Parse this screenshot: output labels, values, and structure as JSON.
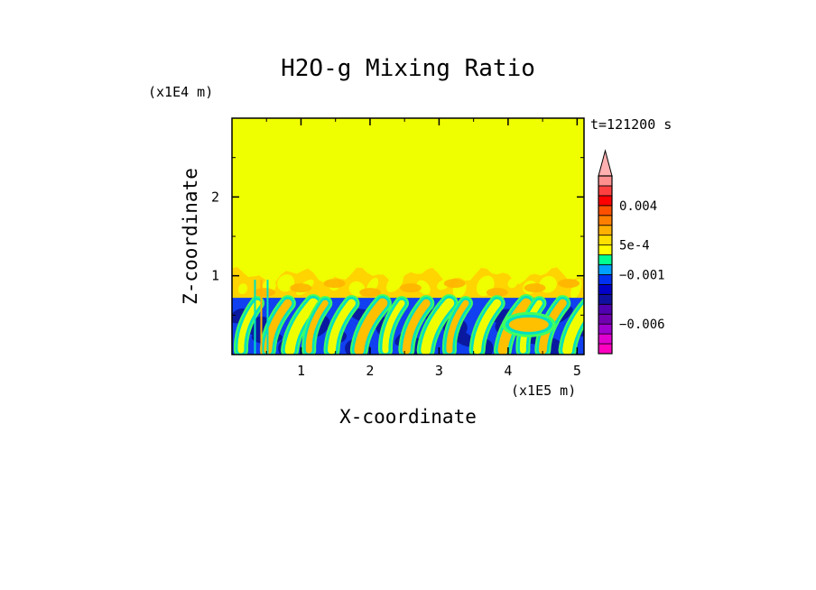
{
  "chart_data": {
    "type": "heatmap",
    "title": "H2O-g Mixing Ratio",
    "xlabel": "X-coordinate",
    "ylabel": "Z-coordinate",
    "x_unit": "(x1E5 m)",
    "y_unit": "(x1E4 m)",
    "time_label": "t=121200 s",
    "x_ticks": [
      "1",
      "2",
      "3",
      "4",
      "5"
    ],
    "y_ticks": [
      "1",
      "2"
    ],
    "x_tick_values": [
      1,
      2,
      3,
      4,
      5
    ],
    "y_tick_values": [
      1,
      2
    ],
    "xlim": [
      0,
      5.1
    ],
    "ylim": [
      0,
      3.0
    ],
    "inversion_height": 0.72,
    "upper_band_top": 1.05,
    "colorbar": {
      "labels": [
        {
          "text": "0.004",
          "value": 0.004
        },
        {
          "text": "5e-4",
          "value": 0.0005
        },
        {
          "text": "−0.001",
          "value": -0.001
        },
        {
          "text": "−0.006",
          "value": -0.006
        }
      ],
      "levels": [
        -0.009,
        -0.008,
        -0.007,
        -0.006,
        -0.005,
        -0.004,
        -0.003,
        -0.002,
        -0.001,
        -0.0005,
        0,
        0.0005,
        0.001,
        0.002,
        0.003,
        0.004,
        0.005,
        0.006,
        0.007
      ],
      "colors": [
        "#ff00c0",
        "#e000d0",
        "#a000d0",
        "#7000b0",
        "#5000b0",
        "#1010a0",
        "#0000c8",
        "#0030f0",
        "#00a0ff",
        "#00ff90",
        "#ffff00",
        "#ffe000",
        "#ffb000",
        "#ff8000",
        "#ff5000",
        "#ff0000",
        "#ff4040",
        "#ff9090"
      ]
    },
    "field_colors": {
      "background": "#f0ff00",
      "upper_plume": "#ffb400",
      "upper_plume_light": "#ffd400",
      "boundary_layer": "#1040f0",
      "boundary_layer_dark": "#0a1aa0",
      "cyan": "#00e0c0",
      "green": "#40ff60"
    }
  }
}
